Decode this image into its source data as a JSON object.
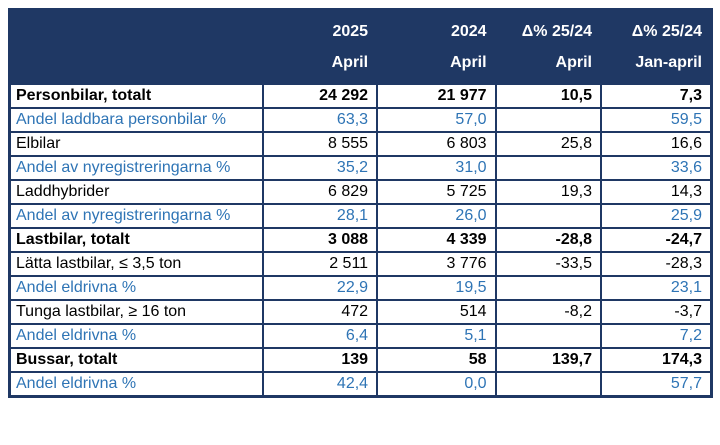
{
  "table": {
    "header": {
      "corner": "",
      "cols": [
        {
          "year": "2025",
          "period": "April"
        },
        {
          "year": "2024",
          "period": "April"
        },
        {
          "year": "Δ% 25/24",
          "period": "April"
        },
        {
          "year": "Δ% 25/24",
          "period": "Jan-april"
        }
      ]
    },
    "rows": [
      {
        "label": "Personbilar, totalt",
        "v2025": "24 292",
        "v2024": "21 977",
        "d_april": "10,5",
        "d_jan": "7,3"
      },
      {
        "label": "Andel laddbara personbilar %",
        "v2025": "63,3",
        "v2024": "57,0",
        "d_april": "",
        "d_jan": "59,5"
      },
      {
        "label": "Elbilar",
        "v2025": "8 555",
        "v2024": "6 803",
        "d_april": "25,8",
        "d_jan": "16,6"
      },
      {
        "label": "Andel av nyregistreringarna %",
        "v2025": "35,2",
        "v2024": "31,0",
        "d_april": "",
        "d_jan": "33,6"
      },
      {
        "label": "Laddhybrider",
        "v2025": "6 829",
        "v2024": "5 725",
        "d_april": "19,3",
        "d_jan": "14,3"
      },
      {
        "label": "Andel av nyregistreringarna %",
        "v2025": "28,1",
        "v2024": "26,0",
        "d_april": "",
        "d_jan": "25,9"
      },
      {
        "label": "Lastbilar, totalt",
        "v2025": "3 088",
        "v2024": "4 339",
        "d_april": "-28,8",
        "d_jan": "-24,7"
      },
      {
        "label": "Lätta lastbilar, ≤ 3,5 ton",
        "v2025": "2 511",
        "v2024": "3 776",
        "d_april": "-33,5",
        "d_jan": "-28,3"
      },
      {
        "label": "Andel eldrivna %",
        "v2025": "22,9",
        "v2024": "19,5",
        "d_april": "",
        "d_jan": "23,1"
      },
      {
        "label": "Tunga lastbilar, ≥ 16 ton",
        "v2025": "472",
        "v2024": "514",
        "d_april": "-8,2",
        "d_jan": "-3,7"
      },
      {
        "label": "Andel eldrivna %",
        "v2025": "6,4",
        "v2024": "5,1",
        "d_april": "",
        "d_jan": "7,2"
      },
      {
        "label": "Bussar, totalt",
        "v2025": "139",
        "v2024": "58",
        "d_april": "139,7",
        "d_jan": "174,3"
      },
      {
        "label": "Andel eldrivna %",
        "v2025": "42,4",
        "v2024": "0,0",
        "d_april": "",
        "d_jan": "57,7"
      }
    ]
  },
  "colors": {
    "header_bg": "#1F3864",
    "header_text": "#ffffff",
    "border": "#1F3864",
    "percent_text": "#2E74B5",
    "negative_text": "#FF0000",
    "body_text": "#000000"
  },
  "chart_data": {
    "type": "table",
    "title": "Nyregistreringar fordon — april 2025 vs 2024",
    "columns": [
      "",
      "2025 April",
      "2024 April",
      "Δ% 25/24 April",
      "Δ% 25/24 Jan-april"
    ],
    "rows": [
      [
        "Personbilar, totalt",
        24292,
        21977,
        10.5,
        7.3
      ],
      [
        "Andel laddbara personbilar %",
        63.3,
        57.0,
        null,
        59.5
      ],
      [
        "Elbilar",
        8555,
        6803,
        25.8,
        16.6
      ],
      [
        "Andel av nyregistreringarna %",
        35.2,
        31.0,
        null,
        33.6
      ],
      [
        "Laddhybrider",
        6829,
        5725,
        19.3,
        14.3
      ],
      [
        "Andel av nyregistreringarna %",
        28.1,
        26.0,
        null,
        25.9
      ],
      [
        "Lastbilar, totalt",
        3088,
        4339,
        -28.8,
        -24.7
      ],
      [
        "Lätta lastbilar, ≤ 3,5 ton",
        2511,
        3776,
        -33.5,
        -28.3
      ],
      [
        "Andel eldrivna %",
        22.9,
        19.5,
        null,
        23.1
      ],
      [
        "Tunga lastbilar, ≥ 16 ton",
        472,
        514,
        -8.2,
        -3.7
      ],
      [
        "Andel eldrivna %",
        6.4,
        5.1,
        null,
        7.2
      ],
      [
        "Bussar, totalt",
        139,
        58,
        139.7,
        174.3
      ],
      [
        "Andel eldrivna %",
        42.4,
        0.0,
        null,
        57.7
      ]
    ]
  }
}
